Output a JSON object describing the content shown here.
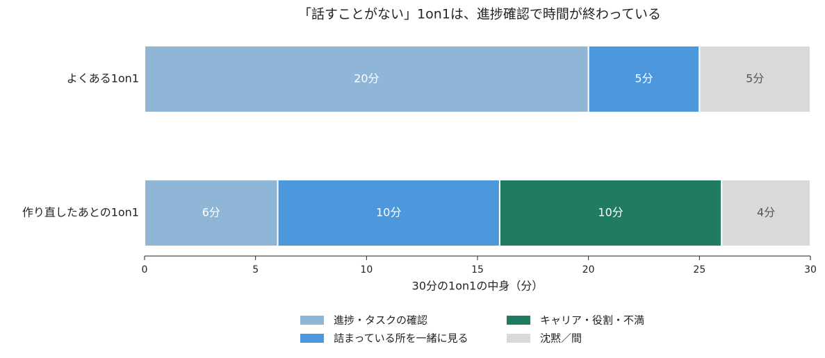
{
  "chart_data": {
    "type": "stacked-barh",
    "title": "「話すことがない」1on1は、進捗確認で時間が終わっている",
    "categories": [
      "よくある1on1",
      "作り直したあとの1on1"
    ],
    "series": [
      {
        "name": "進捗・タスクの確認",
        "color": "#8fb6d7",
        "values": [
          20,
          6
        ],
        "value_labels": [
          "20分",
          "6分"
        ]
      },
      {
        "name": "詰まっている所を一緒に見る",
        "color": "#4d98dc",
        "values": [
          5,
          10
        ],
        "value_labels": [
          "5分",
          "10分"
        ]
      },
      {
        "name": "キャリア・役割・不満",
        "color": "#217a62",
        "values": [
          0,
          10
        ],
        "value_labels": [
          null,
          "10分"
        ]
      },
      {
        "name": "沈黙／間",
        "color": "#d9d9d9",
        "values": [
          5,
          4
        ],
        "value_labels": [
          "5分",
          "4分"
        ]
      }
    ],
    "xlabel": "30分の1on1の中身（分）",
    "xlim": [
      0,
      30
    ],
    "xticks": [
      0,
      5,
      10,
      15,
      20,
      25,
      30
    ]
  }
}
